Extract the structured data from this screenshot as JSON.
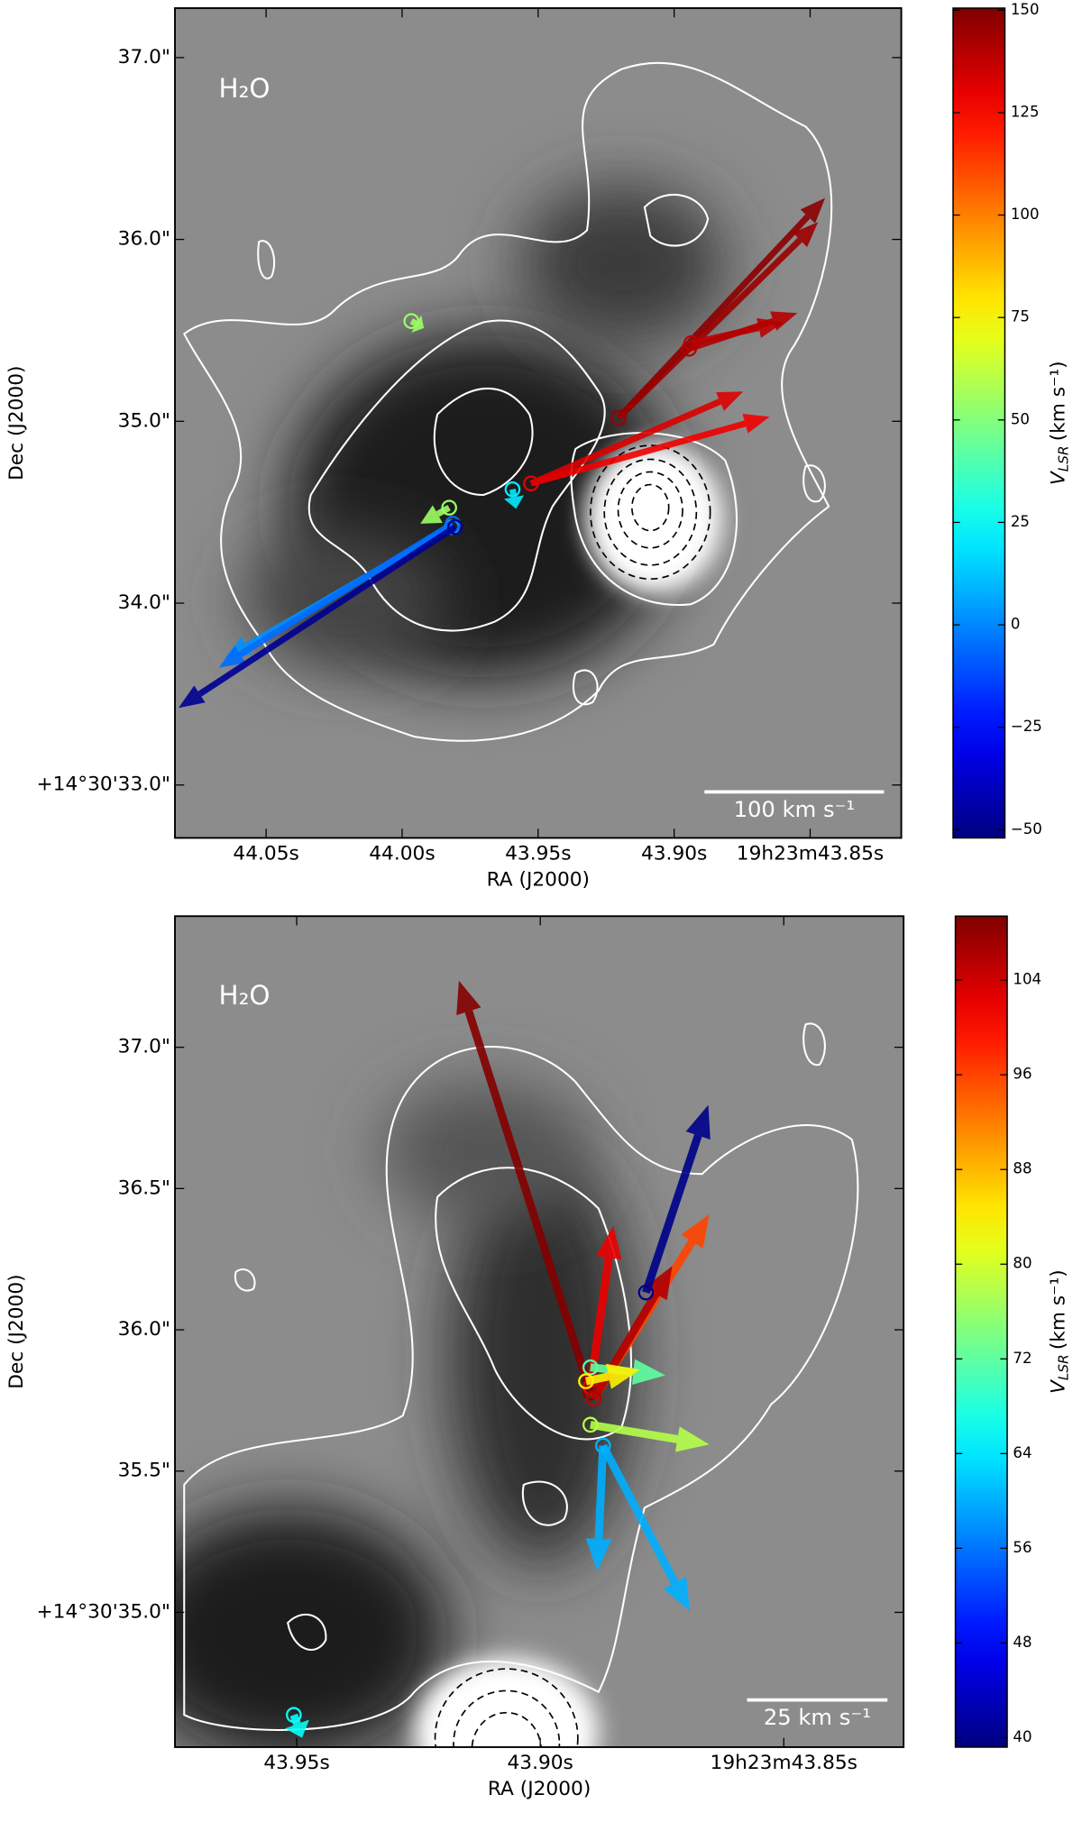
{
  "chart_data": [
    {
      "type": "vector",
      "label": "H₂O",
      "xlabel": "RA (J2000)",
      "ylabel": "Dec (J2000)",
      "scalebar": "100 km s⁻¹",
      "xlim": [
        44.0835,
        43.8165
      ],
      "ylim": [
        32.709,
        37.272
      ],
      "xticks": [
        {
          "value": 44.05,
          "label": "44.05s"
        },
        {
          "value": 44.0,
          "label": "44.00s"
        },
        {
          "value": 43.95,
          "label": "43.95s"
        },
        {
          "value": 43.9,
          "label": "43.90s"
        },
        {
          "value": 43.85,
          "label": "19h23m43.85s"
        }
      ],
      "yticks": [
        {
          "value": 37.0,
          "label": "37.0\""
        },
        {
          "value": 36.0,
          "label": "36.0\""
        },
        {
          "value": 35.0,
          "label": "35.0\""
        },
        {
          "value": 34.0,
          "label": "34.0\""
        },
        {
          "value": 33.0,
          "label": "+14°30'33.0\""
        }
      ],
      "vectors": {
        "x": [
          43.9818,
          43.9814,
          43.9805,
          43.9827,
          43.9966,
          43.9594,
          43.9526,
          43.9526,
          43.9204,
          43.9204,
          43.8937,
          43.8945
        ],
        "y": [
          34.418,
          34.437,
          34.418,
          34.525,
          35.551,
          34.626,
          34.658,
          34.658,
          35.019,
          35.019,
          35.43,
          35.399
        ],
        "x_end": [
          44.0653,
          44.0674,
          44.0822,
          43.9933,
          43.992,
          43.9581,
          43.8649,
          43.8746,
          43.8445,
          43.8471,
          43.8598,
          43.8547
        ],
        "y_end": [
          33.696,
          33.645,
          33.424,
          34.437,
          35.513,
          34.519,
          35.025,
          35.164,
          36.228,
          36.095,
          35.544,
          35.595
        ],
        "v": [
          2,
          -5,
          -48,
          55,
          55,
          20,
          128,
          132,
          148,
          145,
          138,
          140
        ]
      },
      "colorbar": {
        "cmap": "jet",
        "label_symbol": "V",
        "label_subscript": "LSR",
        "label_unit": "(km s⁻¹)",
        "lim": [
          -52,
          150.5
        ],
        "ticks": [
          150,
          125,
          100,
          75,
          50,
          25,
          0,
          {
            "value": -25,
            "label": "−25"
          },
          {
            "value": -50,
            "label": "−50"
          }
        ]
      }
    },
    {
      "type": "vector",
      "label": "H₂O",
      "xlabel": "RA (J2000)",
      "ylabel": "Dec (J2000)",
      "scalebar": "25 km s⁻¹",
      "xlim": [
        43.975,
        43.8254
      ],
      "ylim": [
        34.523,
        37.464
      ],
      "xticks": [
        {
          "value": 43.95,
          "label": "43.95s"
        },
        {
          "value": 43.9,
          "label": "43.90s"
        },
        {
          "value": 43.85,
          "label": "19h23m43.85s"
        }
      ],
      "yticks": [
        {
          "value": 37.0,
          "label": "37.0\""
        },
        {
          "value": 36.5,
          "label": "36.5\""
        },
        {
          "value": 36.0,
          "label": "36.0\""
        },
        {
          "value": 35.5,
          "label": "35.5\""
        },
        {
          "value": 35.0,
          "label": "+14°30'35.0\""
        }
      ],
      "vectors": {
        "x": [
          43.8897,
          43.8897,
          43.889,
          43.889,
          43.8783,
          43.8897,
          43.8906,
          43.8897,
          43.8871,
          43.8871,
          43.9506
        ],
        "y": [
          35.778,
          35.798,
          35.757,
          35.757,
          36.132,
          35.867,
          35.818,
          35.664,
          35.59,
          35.59,
          34.637
        ],
        "x_end": [
          43.9167,
          43.885,
          43.8653,
          43.8729,
          43.8655,
          43.8743,
          43.8795,
          43.8653,
          43.8883,
          43.8693,
          43.9489
        ],
        "y_end": [
          37.236,
          36.368,
          36.409,
          36.226,
          36.796,
          35.839,
          35.859,
          35.594,
          35.146,
          35.004,
          34.556
        ],
        "v": [
          109,
          102,
          96,
          106,
          40,
          72,
          84,
          78,
          60,
          60,
          66
        ]
      },
      "colorbar": {
        "cmap": "jet",
        "label_symbol": "V",
        "label_subscript": "LSR",
        "label_unit": "(km s⁻¹)",
        "lim": [
          39.2,
          109.4
        ],
        "ticks": [
          104,
          96,
          88,
          80,
          72,
          64,
          56,
          48,
          40
        ]
      }
    }
  ]
}
